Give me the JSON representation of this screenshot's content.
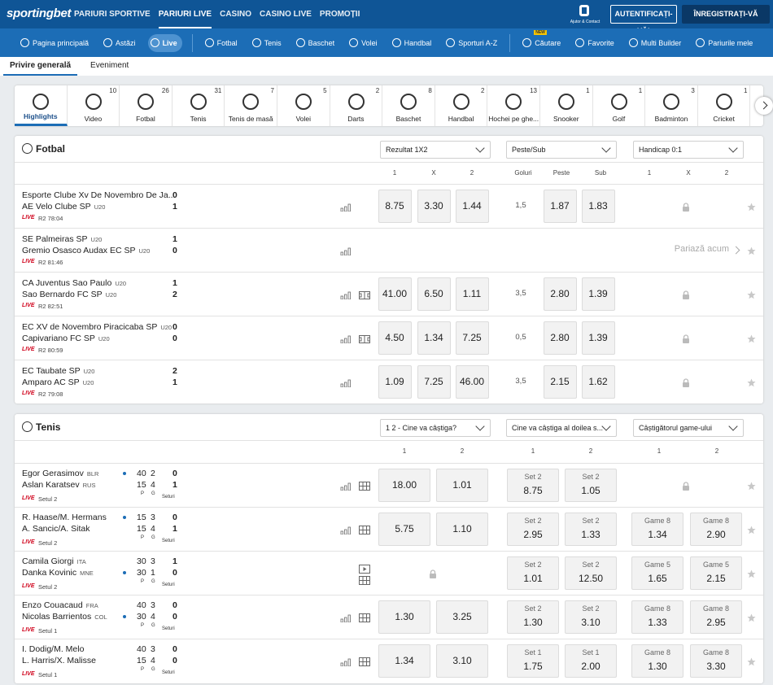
{
  "header": {
    "logo": "sportingbet",
    "nav": [
      "PARIURI SPORTIVE",
      "PARIURI LIVE",
      "CASINO",
      "CASINO LIVE",
      "PROMOȚII"
    ],
    "active": 1,
    "help": "Ajutor & Contact",
    "login": "AUTENTIFICAȚI-VĂ!",
    "register": "ÎNREGISTRAȚI-VĂ ACUM!"
  },
  "subnav": {
    "items": [
      "Pagina principală",
      "Astăzi",
      "Live",
      "Fotbal",
      "Tenis",
      "Baschet",
      "Volei",
      "Handbal",
      "Sporturi A-Z",
      "Căutare",
      "Favorite",
      "Multi Builder",
      "Pariurile mele"
    ],
    "active": 2,
    "badge": "NEW",
    "badge_on": 9
  },
  "tabs": [
    "Privire generală",
    "Eveniment"
  ],
  "sports": [
    {
      "name": "Highlights"
    },
    {
      "name": "Video",
      "count": "10"
    },
    {
      "name": "Fotbal",
      "count": "26"
    },
    {
      "name": "Tenis",
      "count": "31"
    },
    {
      "name": "Tenis de masă",
      "count": "7"
    },
    {
      "name": "Volei",
      "count": "5"
    },
    {
      "name": "Darts",
      "count": "2"
    },
    {
      "name": "Baschet",
      "count": "8"
    },
    {
      "name": "Handbal",
      "count": "2"
    },
    {
      "name": "Hochei pe ghe...",
      "count": "13"
    },
    {
      "name": "Snooker",
      "count": "1"
    },
    {
      "name": "Golf",
      "count": "1"
    },
    {
      "name": "Badminton",
      "count": "3"
    },
    {
      "name": "Cricket",
      "count": "1"
    }
  ],
  "live_label": "LIVE",
  "football": {
    "title": "Fotbal",
    "markets": [
      "Rezultat 1X2",
      "Peste/Sub",
      "Handicap 0:1"
    ],
    "columns": [
      [
        "1",
        "X",
        "2"
      ],
      [
        "Goluri",
        "Peste",
        "Sub"
      ],
      [
        "1",
        "X",
        "2"
      ]
    ],
    "matches": [
      {
        "home": "Esporte Clube Xv De Novembro De Ja...",
        "away": "AE Velo Clube SP",
        "away_tag": "U20",
        "home_score": "0",
        "away_score": "1",
        "time": "R2 78:04",
        "result": [
          "8.75",
          "3.30",
          "1.44"
        ],
        "line": "1,5",
        "ou": [
          "1.87",
          "1.83"
        ],
        "icons": [
          "stats"
        ]
      },
      {
        "home": "SE Palmeiras SP",
        "home_tag": "U20",
        "away": "Gremio Osasco Audax EC SP",
        "away_tag": "U20",
        "home_score": "1",
        "away_score": "0",
        "time": "R2 81:46",
        "cta": "Pariază acum",
        "icons": [
          "stats"
        ]
      },
      {
        "home": "CA Juventus Sao Paulo",
        "home_tag": "U20",
        "away": "Sao Bernardo FC SP",
        "away_tag": "U20",
        "home_score": "1",
        "away_score": "2",
        "time": "R2 82:51",
        "result": [
          "41.00",
          "6.50",
          "1.11"
        ],
        "line": "3,5",
        "ou": [
          "2.80",
          "1.39"
        ],
        "icons": [
          "stats",
          "field"
        ]
      },
      {
        "home": "EC XV de Novembro Piracicaba SP",
        "home_tag": "U20",
        "away": "Capivariano FC SP",
        "away_tag": "U20",
        "home_score": "0",
        "away_score": "0",
        "time": "R2 80:59",
        "result": [
          "4.50",
          "1.34",
          "7.25"
        ],
        "line": "0,5",
        "ou": [
          "2.80",
          "1.39"
        ],
        "icons": [
          "stats",
          "field"
        ]
      },
      {
        "home": "EC Taubate SP",
        "home_tag": "U20",
        "away": "Amparo AC SP",
        "away_tag": "U20",
        "home_score": "2",
        "away_score": "1",
        "time": "R2 79:08",
        "result": [
          "1.09",
          "7.25",
          "46.00"
        ],
        "line": "3,5",
        "ou": [
          "2.15",
          "1.62"
        ],
        "icons": [
          "stats"
        ]
      }
    ]
  },
  "tennis": {
    "title": "Tenis",
    "markets": [
      "1 2 - Cine va câștiga?",
      "Cine va câștiga al doilea s...",
      "Câștigătorul game-ului"
    ],
    "columns": [
      [
        "1",
        "2"
      ],
      [
        "1",
        "2"
      ],
      [
        "1",
        "2"
      ]
    ],
    "score_labels": [
      "P",
      "G",
      "Seturi"
    ],
    "matches": [
      {
        "home": {
          "name": "Egor Gerasimov",
          "tag": "BLR",
          "points": "40",
          "games": "2",
          "sets": "0"
        },
        "away": {
          "name": "Aslan Karatsev",
          "tag": "RUS",
          "points": "15",
          "games": "4",
          "sets": "1"
        },
        "serve": 0,
        "status": "Setul 2",
        "winner": [
          "18.00",
          "1.01"
        ],
        "set": {
          "label": "Set 2",
          "odds": [
            "8.75",
            "1.05"
          ]
        },
        "icons": [
          "stats",
          "grid"
        ]
      },
      {
        "home": {
          "name": "R. Haase/M. Hermans",
          "points": "15",
          "games": "3",
          "sets": "0"
        },
        "away": {
          "name": "A. Sancic/A. Sitak",
          "points": "15",
          "games": "4",
          "sets": "1"
        },
        "serve": 0,
        "status": "Setul 2",
        "winner": [
          "5.75",
          "1.10"
        ],
        "set": {
          "label": "Set 2",
          "odds": [
            "2.95",
            "1.33"
          ]
        },
        "game": {
          "label": "Game 8",
          "odds": [
            "1.34",
            "2.90"
          ]
        },
        "icons": [
          "stats",
          "grid"
        ]
      },
      {
        "home": {
          "name": "Camila Giorgi",
          "tag": "ITA",
          "points": "30",
          "games": "3",
          "sets": "1"
        },
        "away": {
          "name": "Danka Kovinic",
          "tag": "MNE",
          "points": "30",
          "games": "1",
          "sets": "0"
        },
        "serve": 1,
        "status": "Setul 2",
        "set": {
          "label": "Set 2",
          "odds": [
            "1.01",
            "12.50"
          ]
        },
        "game": {
          "label": "Game 5",
          "odds": [
            "1.65",
            "2.15"
          ]
        },
        "icons": [
          "video",
          "grid"
        ]
      },
      {
        "home": {
          "name": "Enzo Couacaud",
          "tag": "FRA",
          "points": "40",
          "games": "3",
          "sets": "0"
        },
        "away": {
          "name": "Nicolas Barrientos",
          "tag": "COL",
          "points": "30",
          "games": "4",
          "sets": "0"
        },
        "serve": 1,
        "status": "Setul 1",
        "winner": [
          "1.30",
          "3.25"
        ],
        "set": {
          "label": "Set 2",
          "odds": [
            "1.30",
            "3.10"
          ]
        },
        "game": {
          "label": "Game 8",
          "odds": [
            "1.33",
            "2.95"
          ]
        },
        "icons": [
          "stats",
          "grid"
        ]
      },
      {
        "home": {
          "name": "I. Dodig/M. Melo",
          "points": "40",
          "games": "3",
          "sets": "0"
        },
        "away": {
          "name": "L. Harris/X. Malisse",
          "points": "15",
          "games": "4",
          "sets": "0"
        },
        "status": "Setul 1",
        "winner": [
          "1.34",
          "3.10"
        ],
        "set": {
          "label": "Set 1",
          "odds": [
            "1.75",
            "2.00"
          ]
        },
        "game": {
          "label": "Game 8",
          "odds": [
            "1.30",
            "3.30"
          ]
        },
        "icons": [
          "stats",
          "grid"
        ]
      }
    ]
  }
}
